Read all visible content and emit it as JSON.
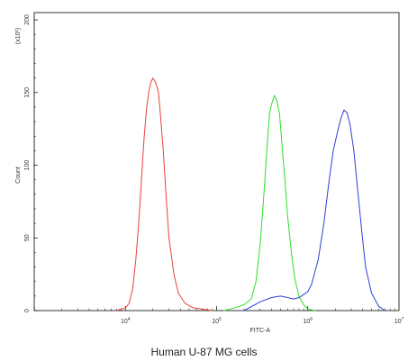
{
  "chart_data": {
    "type": "line",
    "title": "Human U-87 MG cells",
    "xlabel": "FITC-A",
    "ylabel": "Count",
    "y_multiplier_label": "(x10¹)",
    "x_scale": "log",
    "xlim": [
      1000,
      10000000
    ],
    "ylim": [
      0,
      205
    ],
    "x_ticks": [
      {
        "value": 10000,
        "base": "10",
        "exp": "4"
      },
      {
        "value": 100000,
        "base": "10",
        "exp": "5"
      },
      {
        "value": 1000000,
        "base": "10",
        "exp": "6"
      },
      {
        "value": 10000000,
        "base": "10",
        "exp": "7"
      }
    ],
    "y_ticks": [
      {
        "value": 0,
        "label": "0"
      },
      {
        "value": 50,
        "label": "50"
      },
      {
        "value": 100,
        "label": "100"
      },
      {
        "value": 150,
        "label": "150"
      },
      {
        "value": 200,
        "label": "200"
      }
    ],
    "series": [
      {
        "color": "#e8423c",
        "x": [
          8000,
          10000,
          11000,
          12000,
          13000,
          14000,
          15000,
          16000,
          17000,
          18000,
          19000,
          20000,
          21000,
          22000,
          23000,
          24000,
          26000,
          28000,
          30000,
          34000,
          38000,
          45000,
          55000,
          70000,
          90000
        ],
        "y": [
          0,
          2,
          5,
          15,
          35,
          60,
          90,
          118,
          138,
          150,
          157,
          160,
          158,
          155,
          150,
          138,
          110,
          78,
          50,
          25,
          12,
          5,
          2,
          1,
          0
        ]
      },
      {
        "color": "#2ee02e",
        "x": [
          120000,
          160000,
          200000,
          240000,
          270000,
          300000,
          330000,
          360000,
          380000,
          400000,
          430000,
          460000,
          490000,
          520000,
          560000,
          600000,
          660000,
          720000,
          800000,
          900000,
          1000000,
          1200000
        ],
        "y": [
          0,
          2,
          4,
          8,
          20,
          45,
          80,
          115,
          135,
          142,
          148,
          144,
          135,
          115,
          90,
          65,
          40,
          22,
          10,
          4,
          1,
          0
        ]
      },
      {
        "color": "#2f3fd8",
        "x": [
          200000,
          300000,
          400000,
          500000,
          600000,
          700000,
          800000,
          900000,
          1000000,
          1100000,
          1300000,
          1500000,
          1700000,
          1900000,
          2100000,
          2300000,
          2500000,
          2700000,
          2900000,
          3200000,
          3500000,
          3900000,
          4300000,
          5000000,
          6000000,
          7000000
        ],
        "y": [
          0,
          6,
          9,
          10,
          9,
          8,
          9,
          11,
          13,
          18,
          35,
          60,
          88,
          110,
          122,
          132,
          138,
          136,
          128,
          110,
          85,
          55,
          30,
          12,
          3,
          0
        ]
      }
    ],
    "grid": false,
    "legend": "none"
  }
}
